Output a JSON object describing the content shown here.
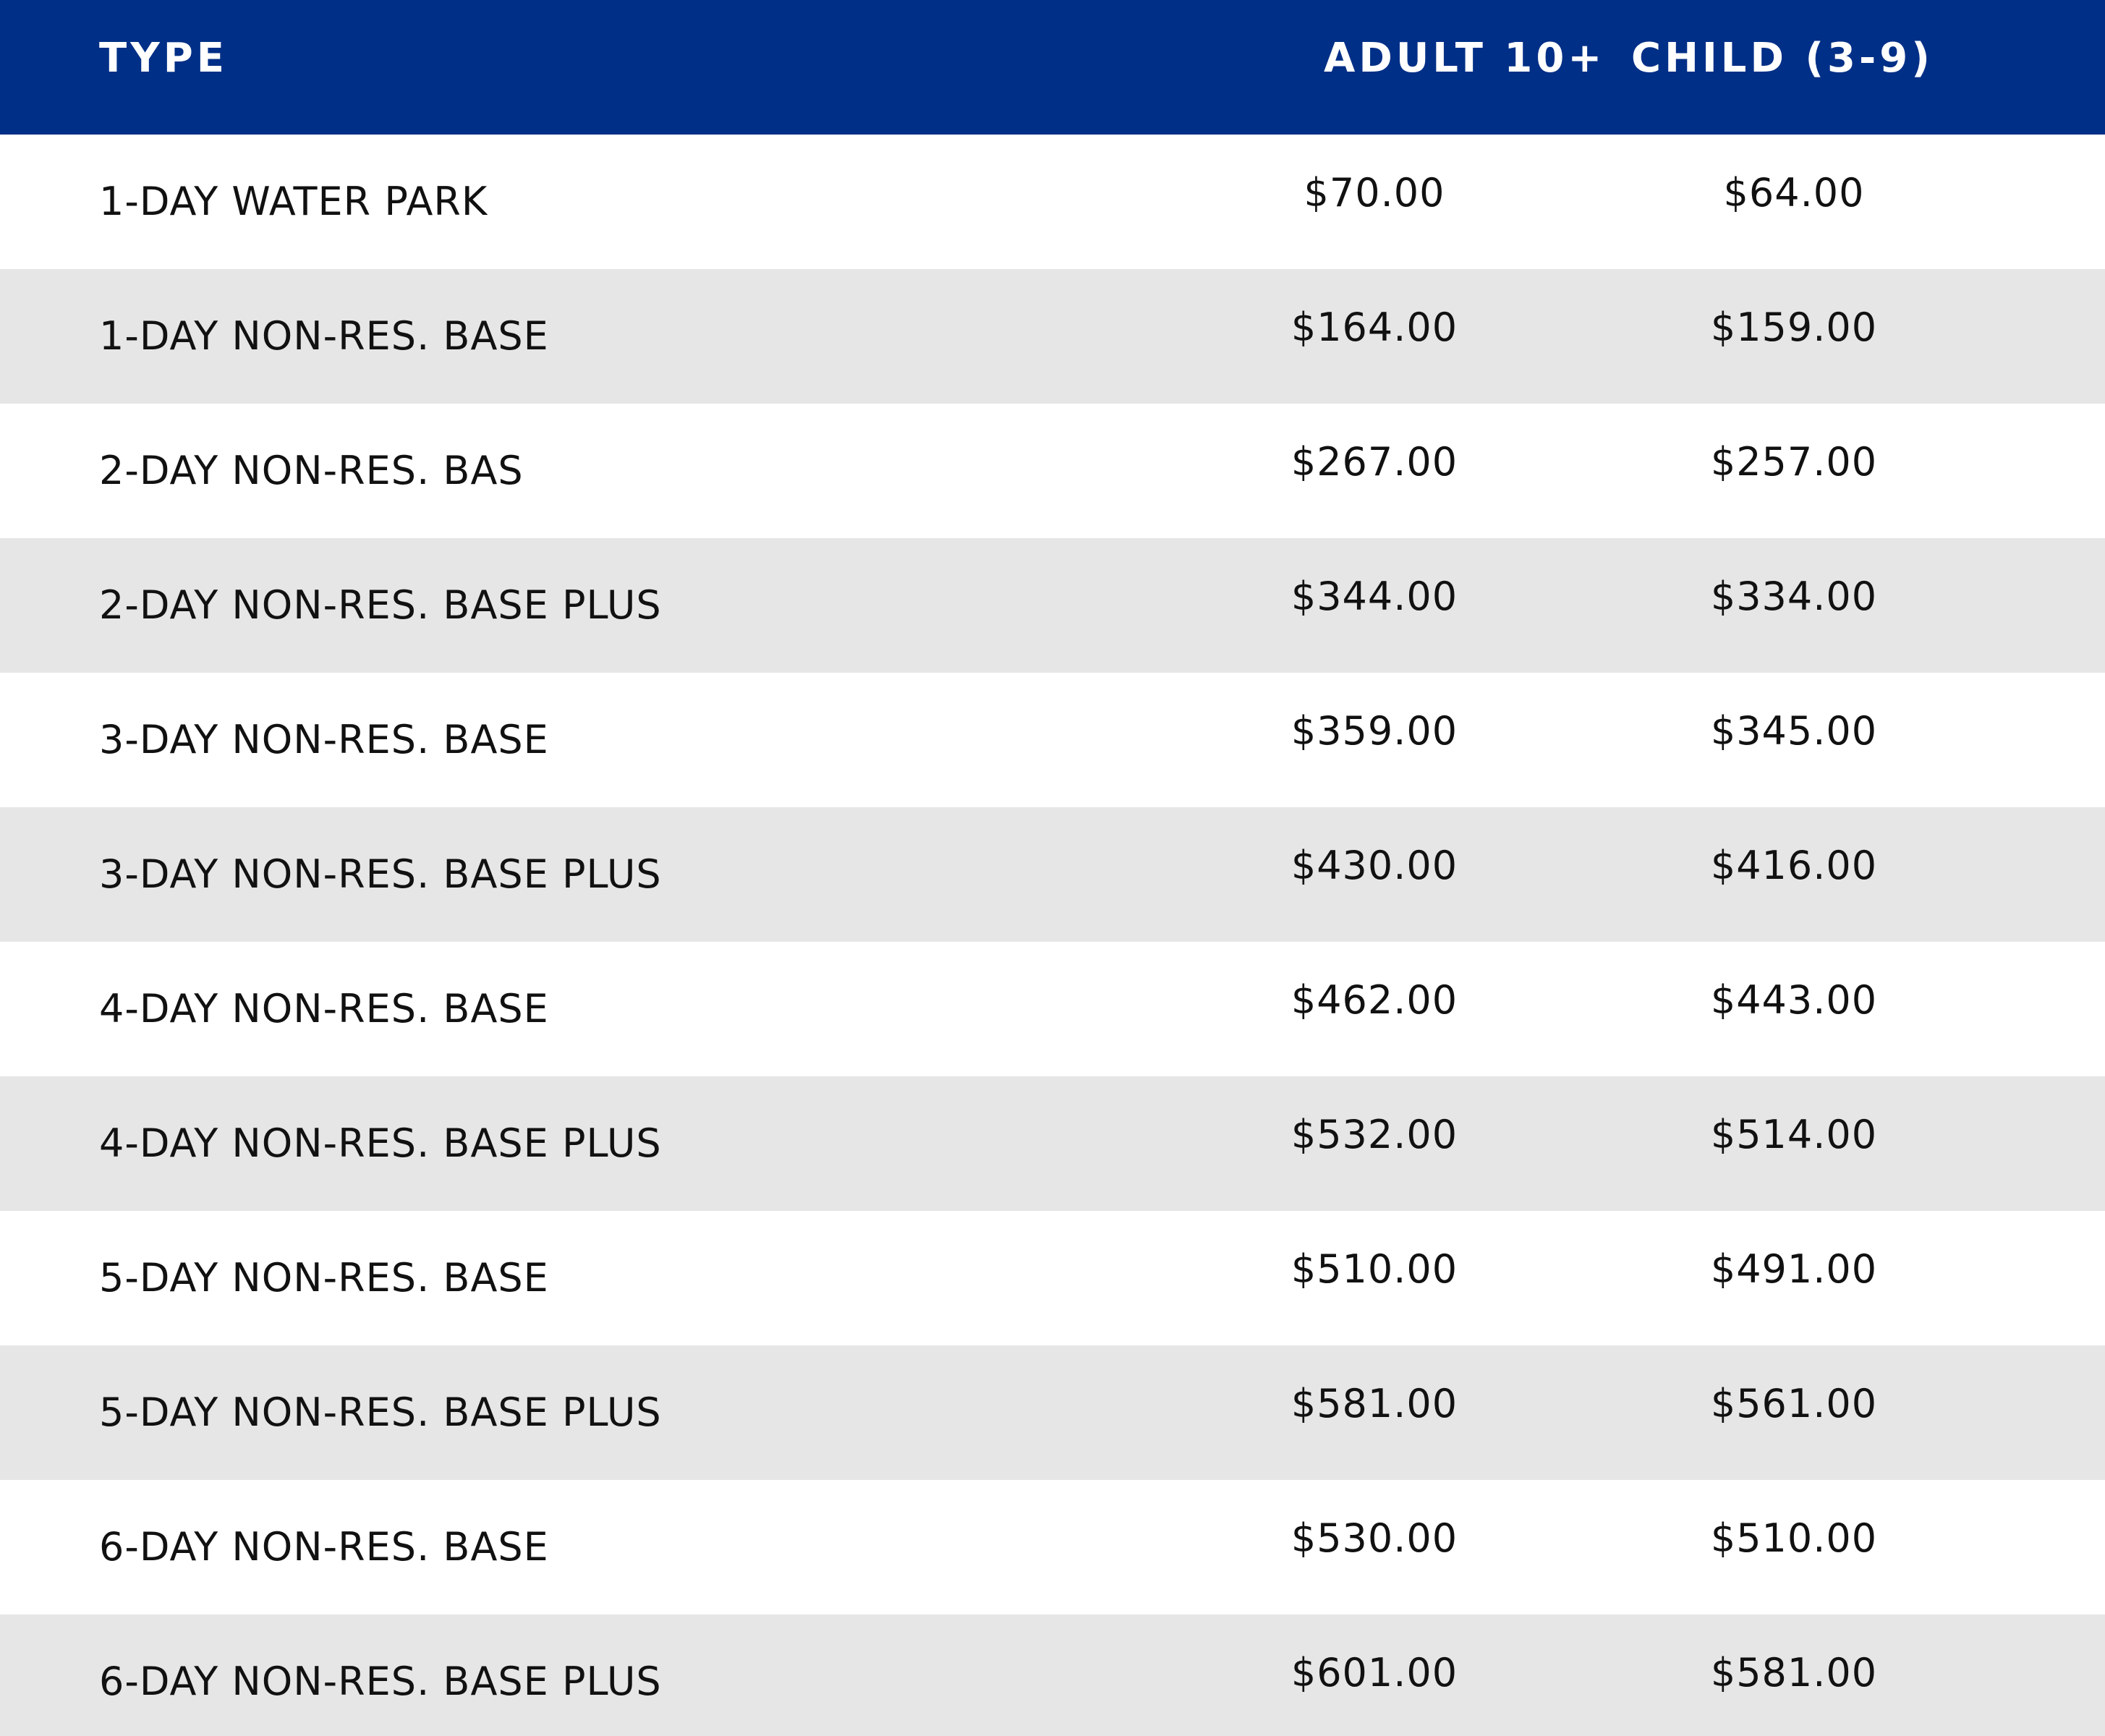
{
  "header": {
    "type": "TYPE",
    "adult": "ADULT 10+",
    "child": "CHILD (3-9)"
  },
  "rows": [
    {
      "type": "1-DAY WATER PARK",
      "adult": "$70.00",
      "child": "$64.00"
    },
    {
      "type": "1-DAY NON-RES. BASE",
      "adult": "$164.00",
      "child": "$159.00"
    },
    {
      "type": "2-DAY NON-RES. BAS",
      "adult": "$267.00",
      "child": "$257.00"
    },
    {
      "type": "2-DAY NON-RES. BASE PLUS",
      "adult": "$344.00",
      "child": "$334.00"
    },
    {
      "type": "3-DAY NON-RES. BASE",
      "adult": "$359.00",
      "child": "$345.00"
    },
    {
      "type": "3-DAY NON-RES. BASE PLUS",
      "adult": "$430.00",
      "child": "$416.00"
    },
    {
      "type": "4-DAY NON-RES. BASE",
      "adult": "$462.00",
      "child": "$443.00"
    },
    {
      "type": "4-DAY NON-RES. BASE PLUS",
      "adult": "$532.00",
      "child": "$514.00"
    },
    {
      "type": "5-DAY NON-RES. BASE",
      "adult": "$510.00",
      "child": "$491.00"
    },
    {
      "type": "5-DAY NON-RES. BASE PLUS",
      "adult": "$581.00",
      "child": "$561.00"
    },
    {
      "type": "6-DAY NON-RES. BASE",
      "adult": "$530.00",
      "child": "$510.00"
    },
    {
      "type": "6-DAY NON-RES. BASE  PLUS",
      "adult": "$601.00",
      "child": "$581.00"
    }
  ],
  "colors": {
    "header_bg": "#002f87",
    "stripe": "#e6e6e6"
  }
}
